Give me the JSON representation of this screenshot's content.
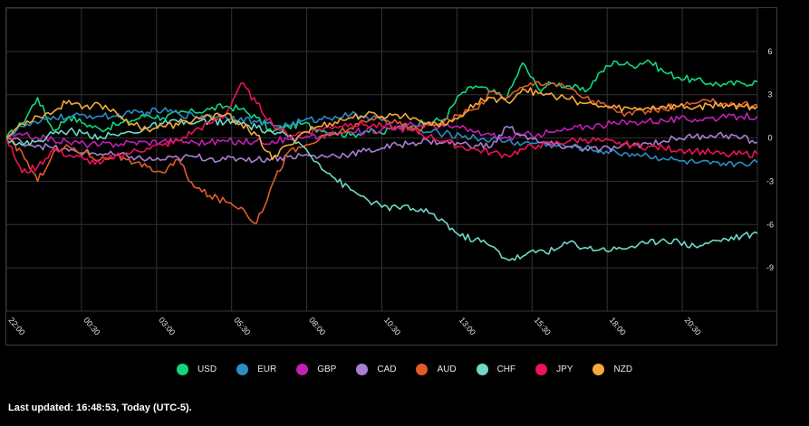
{
  "chart_data": {
    "type": "line",
    "title": "",
    "xlabel": "",
    "ylabel": "",
    "x_ticks": [
      "22:00",
      "00:30",
      "03:00",
      "05:30",
      "08:00",
      "10:30",
      "13:00",
      "15:30",
      "18:00",
      "20:30"
    ],
    "y_ticks": [
      6,
      3,
      0,
      -3,
      -6,
      -9
    ],
    "ylim": [
      -12,
      9
    ],
    "grid": true,
    "legend_position": "bottom",
    "series": [
      {
        "name": "USD",
        "color": "#11d67d",
        "values": [
          0,
          1,
          2.8,
          0.5,
          1.5,
          1,
          0.6,
          0.9,
          1.2,
          1.6,
          1.4,
          1.7,
          1.8,
          2.0,
          2.2,
          2.0,
          1.4,
          0.4,
          0.8,
          1.0,
          0.6,
          0.4,
          0.2,
          0.5,
          0.3,
          0.8,
          0.9,
          1.1,
          1.3,
          3.0,
          3.6,
          3.2,
          2.8,
          5.2,
          3.4,
          3.8,
          3.6,
          3.2,
          4.6,
          5.3,
          5.0,
          5.4,
          4.6,
          4.2,
          4.0,
          3.8,
          3.7,
          3.8,
          3.9
        ]
      },
      {
        "name": "EUR",
        "color": "#2a8ec4",
        "values": [
          0,
          0.8,
          1.0,
          1.5,
          1.4,
          1.6,
          1.5,
          1.5,
          1.7,
          1.8,
          1.9,
          1.7,
          1.5,
          1.6,
          1.5,
          1.4,
          1.1,
          0.9,
          0.9,
          1.2,
          1.3,
          1.5,
          1.6,
          1.5,
          1.2,
          0.8,
          0.5,
          0.4,
          0.3,
          0.2,
          0.0,
          -0.1,
          -0.2,
          -0.4,
          -0.3,
          -0.5,
          -0.6,
          -0.7,
          -0.9,
          -1.0,
          -1.1,
          -1.2,
          -1.4,
          -1.6,
          -1.7,
          -1.8,
          -1.9,
          -1.7,
          -1.7
        ]
      },
      {
        "name": "GBP",
        "color": "#c21fb4",
        "values": [
          0,
          0.2,
          0.0,
          -0.1,
          -0.3,
          -0.4,
          -0.5,
          -0.4,
          -0.3,
          -0.3,
          -0.2,
          -0.2,
          -0.3,
          -0.3,
          -0.2,
          -0.3,
          -0.2,
          -0.2,
          -0.1,
          0.0,
          0.1,
          0.3,
          0.4,
          0.5,
          0.6,
          0.8,
          0.9,
          0.9,
          0.8,
          0.7,
          0.4,
          0.2,
          0.0,
          0.2,
          0.3,
          0.4,
          0.6,
          0.8,
          0.9,
          1.0,
          1.1,
          1.2,
          1.2,
          1.3,
          1.3,
          1.4,
          1.4,
          1.5,
          1.5
        ]
      },
      {
        "name": "CAD",
        "color": "#a97fd1",
        "values": [
          0,
          -0.3,
          -0.5,
          -0.7,
          -0.9,
          -1.0,
          -1.1,
          -1.2,
          -1.3,
          -1.5,
          -1.5,
          -1.4,
          -1.3,
          -1.4,
          -1.5,
          -1.4,
          -1.5,
          -1.4,
          -1.3,
          -1.2,
          -1.3,
          -1.2,
          -1.1,
          -0.9,
          -0.7,
          -0.5,
          -0.3,
          -0.2,
          -0.3,
          -0.4,
          -0.5,
          -0.6,
          0.8,
          0.2,
          -0.3,
          -0.5,
          -0.6,
          -0.7,
          -0.8,
          -0.7,
          -0.5,
          -0.4,
          -0.2,
          0.0,
          0.1,
          0.2,
          0.2,
          0.0,
          -0.3
        ]
      },
      {
        "name": "AUD",
        "color": "#e05c2a",
        "values": [
          0,
          -1.0,
          -3.0,
          -1.0,
          -0.6,
          -1.0,
          -1.5,
          -1.2,
          -1.8,
          -2.0,
          -2.4,
          -1.5,
          -3.4,
          -4.0,
          -4.4,
          -4.8,
          -5.9,
          -3.2,
          -1.0,
          -0.6,
          -0.1,
          0.3,
          0.7,
          1.1,
          1.5,
          1.0,
          0.6,
          0.9,
          1.2,
          1.6,
          2.0,
          3.2,
          2.8,
          3.5,
          3.9,
          3.8,
          3.4,
          2.8,
          2.4,
          1.8,
          1.6,
          1.9,
          2.0,
          2.2,
          2.4,
          2.5,
          2.4,
          2.3,
          2.3
        ]
      },
      {
        "name": "CHF",
        "color": "#6fd9c6",
        "values": [
          0,
          -0.5,
          -0.2,
          0.3,
          0.5,
          0.3,
          0.1,
          0.2,
          0.4,
          0.7,
          1.0,
          1.1,
          1.0,
          1.2,
          1.1,
          1.0,
          0.7,
          0.4,
          0.1,
          -0.6,
          -1.8,
          -2.8,
          -3.6,
          -4.2,
          -4.8,
          -4.8,
          -4.9,
          -5.2,
          -5.8,
          -6.8,
          -7.0,
          -7.5,
          -8.4,
          -8.2,
          -7.8,
          -7.8,
          -7.2,
          -7.6,
          -7.7,
          -7.7,
          -7.5,
          -7.3,
          -7.0,
          -7.2,
          -7.5,
          -7.2,
          -7.0,
          -6.8,
          -6.6
        ]
      },
      {
        "name": "JPY",
        "color": "#ec1356",
        "values": [
          0,
          -2.4,
          -2.0,
          -0.8,
          -1.2,
          -1.5,
          -1.8,
          -1.2,
          -1.0,
          -0.7,
          -0.5,
          -0.2,
          0.5,
          1.0,
          1.6,
          3.8,
          2.4,
          1.0,
          0.2,
          0.4,
          0.6,
          0.8,
          1.0,
          0.9,
          0.8,
          0.7,
          0.5,
          0.1,
          -0.2,
          -0.6,
          -0.8,
          -1.0,
          -1.2,
          -0.8,
          -0.5,
          -0.4,
          -0.2,
          -0.1,
          -0.2,
          -0.4,
          -0.5,
          -0.6,
          -0.7,
          -0.8,
          -0.9,
          -1.0,
          -1.2,
          -1.1,
          -1.1
        ]
      },
      {
        "name": "NZD",
        "color": "#f8a93b",
        "values": [
          0,
          1.0,
          1.5,
          1.8,
          2.6,
          2.2,
          2.3,
          1.8,
          1.0,
          0.6,
          0.8,
          0.9,
          1.3,
          1.5,
          1.6,
          1.0,
          0.2,
          -1.5,
          -0.5,
          0.4,
          0.8,
          1.1,
          1.4,
          1.6,
          1.5,
          1.6,
          1.4,
          1.1,
          0.9,
          1.5,
          2.4,
          2.8,
          2.5,
          3.4,
          3.1,
          2.9,
          2.7,
          2.4,
          2.2,
          2.1,
          2.0,
          2.1,
          2.2,
          2.2,
          2.1,
          2.3,
          2.3,
          2.2,
          2.2
        ]
      }
    ]
  },
  "footer": {
    "last_updated": "Last updated: 16:48:53, Today (UTC-5)."
  }
}
